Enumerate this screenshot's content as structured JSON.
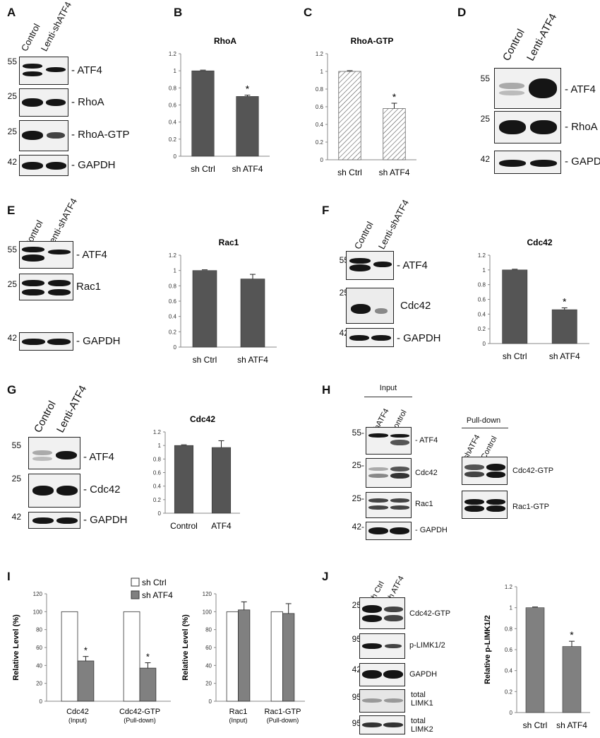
{
  "panels": {
    "A": {
      "letter": "A",
      "lanes": [
        "Control",
        "Lenti-shATF4"
      ],
      "blots": [
        {
          "mw": "55",
          "label": "- ATF4"
        },
        {
          "mw": "25",
          "label": "- RhoA"
        },
        {
          "mw": "25",
          "label": "- RhoA-GTP"
        },
        {
          "mw": "42",
          "label": "- GAPDH"
        }
      ]
    },
    "B": {
      "letter": "B"
    },
    "C": {
      "letter": "C"
    },
    "D": {
      "letter": "D",
      "lanes": [
        "Control",
        "Lenti-ATF4"
      ],
      "blots": [
        {
          "mw": "55",
          "label": "- ATF4"
        },
        {
          "mw": "25",
          "label": "- RhoA"
        },
        {
          "mw": "42",
          "label": "- GAPDH"
        }
      ]
    },
    "E": {
      "letter": "E",
      "lanes": [
        "Control",
        "Lenti-shATF4"
      ],
      "blots": [
        {
          "mw": "55",
          "label": "- ATF4"
        },
        {
          "mw": "25",
          "label": "Rac1"
        },
        {
          "mw": "42",
          "label": "- GAPDH"
        }
      ]
    },
    "F": {
      "letter": "F",
      "lanes": [
        "Control",
        "Lenti-shATF4"
      ],
      "blots": [
        {
          "mw": "55",
          "label": "- ATF4"
        },
        {
          "mw": "25",
          "label": "Cdc42"
        },
        {
          "mw": "42",
          "label": "- GAPDH"
        }
      ]
    },
    "G": {
      "letter": "G",
      "lanes": [
        "Control",
        "Lenti-ATF4"
      ],
      "blots": [
        {
          "mw": "55",
          "label": "- ATF4"
        },
        {
          "mw": "25",
          "label": "- Cdc42"
        },
        {
          "mw": "42",
          "label": "- GAPDH"
        }
      ]
    },
    "H": {
      "letter": "H",
      "input_header": "Input",
      "pulldown_header": "Pull-down",
      "lanes": [
        "shATF4",
        "Control"
      ],
      "blots": [
        {
          "mw": "55-",
          "label": "- ATF4"
        },
        {
          "mw": "25-",
          "label": "Cdc42"
        },
        {
          "mw": "25-",
          "label": "Rac1"
        },
        {
          "mw": "42-",
          "label": "- GAPDH"
        }
      ],
      "pulldown_blots": [
        {
          "label": "Cdc42-GTP"
        },
        {
          "label": "Rac1-GTP"
        }
      ]
    },
    "I": {
      "letter": "I"
    },
    "J": {
      "letter": "J",
      "lanes": [
        "sh Ctrl",
        "sh ATF4"
      ],
      "blots": [
        {
          "mw": "25-",
          "label": "Cdc42-GTP"
        },
        {
          "mw": "95-",
          "label": "p-LIMK1/2"
        },
        {
          "mw": "42-",
          "label": "GAPDH"
        },
        {
          "mw": "95-",
          "label": "total\nLIMK1"
        },
        {
          "mw": "95-",
          "label": "total\nLIMK2"
        }
      ]
    }
  },
  "chart_data": [
    {
      "id": "B",
      "type": "bar",
      "title": "RhoA",
      "categories": [
        "sh Ctrl",
        "sh ATF4"
      ],
      "values": [
        1.0,
        0.7
      ],
      "errors": [
        0,
        0.015
      ],
      "significance": [
        "",
        "*"
      ],
      "ylim": [
        0,
        1.2
      ],
      "yticks": [
        "0",
        "0.2",
        "0.4",
        "0.6",
        "0.8",
        "1",
        "1.2"
      ],
      "fill": "#555555",
      "pattern": false
    },
    {
      "id": "C",
      "type": "bar",
      "title": "RhoA-GTP",
      "categories": [
        "sh Ctrl",
        "sh ATF4"
      ],
      "values": [
        1.0,
        0.58
      ],
      "errors": [
        0,
        0.06
      ],
      "significance": [
        "",
        "*"
      ],
      "ylim": [
        0,
        1.2
      ],
      "yticks": [
        "0",
        "0.2",
        "0.4",
        "0.6",
        "0.8",
        "1",
        "1.2"
      ],
      "fill": "#ffffff",
      "pattern": true
    },
    {
      "id": "E",
      "type": "bar",
      "title": "Rac1",
      "categories": [
        "sh Ctrl",
        "sh ATF4"
      ],
      "values": [
        1.0,
        0.89
      ],
      "errors": [
        0,
        0.06
      ],
      "significance": [
        "",
        ""
      ],
      "ylim": [
        0,
        1.2
      ],
      "yticks": [
        "0",
        "0.2",
        "0.4",
        "0.6",
        "0.8",
        "1",
        "1.2"
      ],
      "fill": "#555555",
      "pattern": false
    },
    {
      "id": "F",
      "type": "bar",
      "title": "Cdc42",
      "categories": [
        "sh Ctrl",
        "sh ATF4"
      ],
      "values": [
        1.0,
        0.46
      ],
      "errors": [
        0,
        0.025
      ],
      "significance": [
        "",
        "*"
      ],
      "ylim": [
        0,
        1.2
      ],
      "yticks": [
        "0",
        "0.2",
        "0.4",
        "0.6",
        "0.8",
        "1",
        "1.2"
      ],
      "fill": "#555555",
      "pattern": false
    },
    {
      "id": "G",
      "type": "bar",
      "title": "Cdc42",
      "categories": [
        "Control",
        "ATF4"
      ],
      "values": [
        1.0,
        0.97
      ],
      "errors": [
        0,
        0.1
      ],
      "significance": [
        "",
        ""
      ],
      "ylim": [
        0,
        1.2
      ],
      "yticks": [
        "0",
        "0.2",
        "0.4",
        "0.6",
        "0.8",
        "1",
        "1.2"
      ],
      "fill": "#555555",
      "pattern": false
    },
    {
      "id": "I1",
      "type": "bar",
      "title": "",
      "ylabel": "Relative Level (%)",
      "categories": [
        "Cdc42",
        "Cdc42-GTP"
      ],
      "subcategories": [
        "(Input)",
        "(Pull-down)"
      ],
      "series": [
        {
          "name": "sh Ctrl",
          "values": [
            100,
            100
          ],
          "errors": [
            0,
            0
          ],
          "fill": "#ffffff"
        },
        {
          "name": "sh ATF4",
          "values": [
            45,
            37
          ],
          "errors": [
            5,
            6
          ],
          "fill": "#808080"
        }
      ],
      "significance": [
        "*",
        "*"
      ],
      "ylim": [
        0,
        120
      ],
      "yticks": [
        "0",
        "20",
        "40",
        "60",
        "80",
        "100",
        "120"
      ]
    },
    {
      "id": "I2",
      "type": "bar",
      "title": "",
      "ylabel": "Relative Level (%)",
      "categories": [
        "Rac1",
        "Rac1-GTP"
      ],
      "subcategories": [
        "(Input)",
        "(Pull-down)"
      ],
      "series": [
        {
          "name": "sh Ctrl",
          "values": [
            100,
            100
          ],
          "errors": [
            0,
            0
          ],
          "fill": "#ffffff"
        },
        {
          "name": "sh ATF4",
          "values": [
            102,
            98
          ],
          "errors": [
            9,
            11
          ],
          "fill": "#808080"
        }
      ],
      "significance": [
        "",
        ""
      ],
      "ylim": [
        0,
        120
      ],
      "yticks": [
        "0",
        "20",
        "40",
        "60",
        "80",
        "100",
        "120"
      ]
    },
    {
      "id": "J",
      "type": "bar",
      "title": "",
      "ylabel": "Relative p-LIMK1/2",
      "categories": [
        "sh Ctrl",
        "sh ATF4"
      ],
      "values": [
        1.0,
        0.63
      ],
      "errors": [
        0,
        0.05
      ],
      "significance": [
        "",
        "*"
      ],
      "ylim": [
        0,
        1.2
      ],
      "yticks": [
        "0",
        "0.2",
        "0.4",
        "0.6",
        "0.8",
        "1",
        "1.2"
      ],
      "fill": "#808080",
      "pattern": false
    }
  ]
}
